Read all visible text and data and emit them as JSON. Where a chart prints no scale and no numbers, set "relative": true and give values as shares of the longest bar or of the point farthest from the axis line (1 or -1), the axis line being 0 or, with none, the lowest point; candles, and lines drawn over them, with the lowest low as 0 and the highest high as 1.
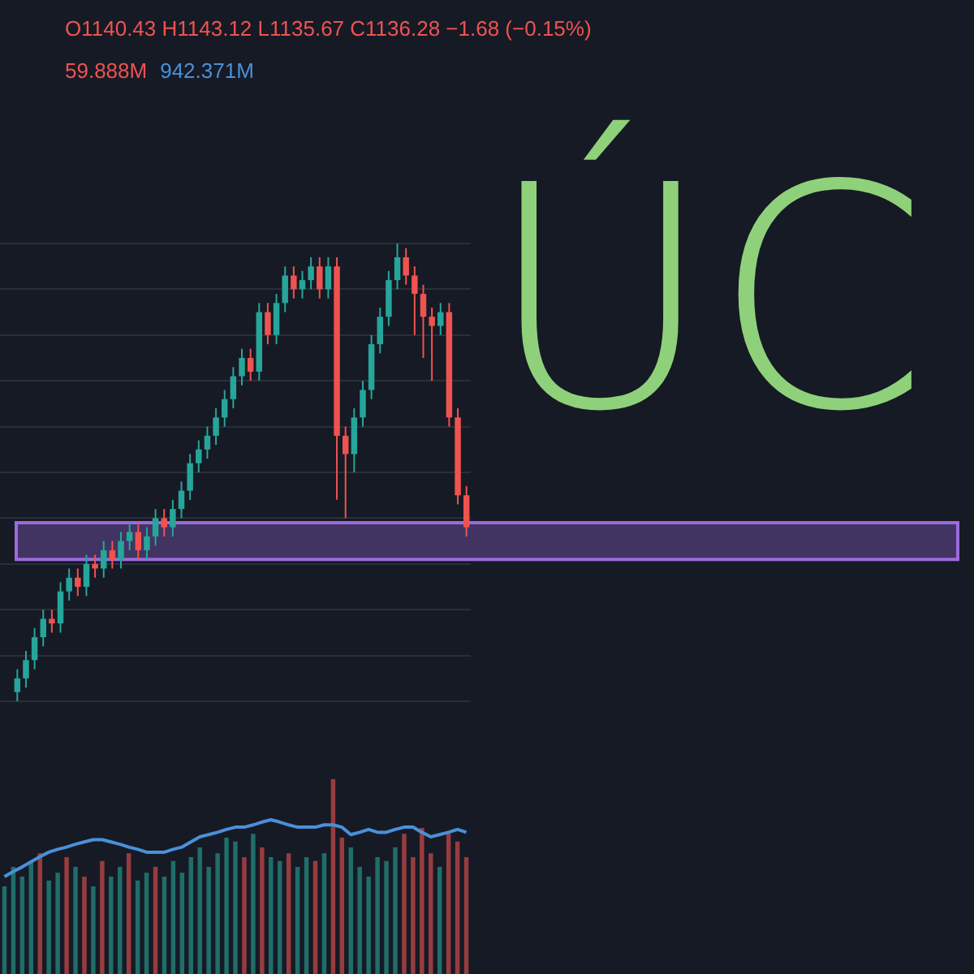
{
  "chart_data": [
    {
      "type": "candlestick",
      "relative": true,
      "grid": true,
      "annotations": [
        "O1140.43 H1143.12 L1135.67 C1136.28 −1.68 (−0.15%)",
        "ÚC"
      ],
      "categories": [
        null,
        null,
        null,
        null,
        null,
        null,
        null,
        null,
        null,
        null,
        null,
        null,
        null,
        null,
        null,
        null,
        null,
        null,
        null,
        null,
        null,
        null,
        null,
        null,
        null,
        null,
        null,
        null,
        null,
        null,
        null,
        null,
        null,
        null,
        null,
        null,
        null,
        null,
        null,
        null,
        null,
        null,
        null,
        null,
        null,
        null,
        null,
        null,
        null,
        null,
        null,
        null,
        null
      ],
      "ohlc": [
        [
          0.02,
          0.07,
          0,
          0.05
        ],
        [
          0.05,
          0.11,
          0.03,
          0.09
        ],
        [
          0.09,
          0.16,
          0.07,
          0.14
        ],
        [
          0.14,
          0.2,
          0.12,
          0.18
        ],
        [
          0.18,
          0.2,
          0.15,
          0.17
        ],
        [
          0.17,
          0.26,
          0.15,
          0.24
        ],
        [
          0.24,
          0.29,
          0.22,
          0.27
        ],
        [
          0.27,
          0.29,
          0.23,
          0.25
        ],
        [
          0.25,
          0.32,
          0.23,
          0.3
        ],
        [
          0.3,
          0.32,
          0.27,
          0.29
        ],
        [
          0.29,
          0.35,
          0.27,
          0.33
        ],
        [
          0.33,
          0.35,
          0.29,
          0.31
        ],
        [
          0.31,
          0.37,
          0.29,
          0.35
        ],
        [
          0.35,
          0.39,
          0.33,
          0.37
        ],
        [
          0.37,
          0.39,
          0.31,
          0.33
        ],
        [
          0.33,
          0.38,
          0.31,
          0.36
        ],
        [
          0.36,
          0.42,
          0.34,
          0.4
        ],
        [
          0.4,
          0.42,
          0.36,
          0.38
        ],
        [
          0.38,
          0.44,
          0.36,
          0.42
        ],
        [
          0.42,
          0.48,
          0.4,
          0.46
        ],
        [
          0.46,
          0.54,
          0.44,
          0.52
        ],
        [
          0.52,
          0.57,
          0.5,
          0.55
        ],
        [
          0.55,
          0.6,
          0.53,
          0.58
        ],
        [
          0.58,
          0.64,
          0.56,
          0.62
        ],
        [
          0.62,
          0.68,
          0.6,
          0.66
        ],
        [
          0.66,
          0.73,
          0.64,
          0.71
        ],
        [
          0.71,
          0.77,
          0.69,
          0.75
        ],
        [
          0.75,
          0.77,
          0.7,
          0.72
        ],
        [
          0.72,
          0.87,
          0.7,
          0.85
        ],
        [
          0.85,
          0.87,
          0.78,
          0.8
        ],
        [
          0.8,
          0.89,
          0.78,
          0.87
        ],
        [
          0.87,
          0.95,
          0.85,
          0.93
        ],
        [
          0.93,
          0.95,
          0.88,
          0.9
        ],
        [
          0.9,
          0.94,
          0.88,
          0.92
        ],
        [
          0.92,
          0.97,
          0.9,
          0.95
        ],
        [
          0.95,
          0.97,
          0.88,
          0.9
        ],
        [
          0.9,
          0.97,
          0.88,
          0.95
        ],
        [
          0.95,
          0.97,
          0.44,
          0.58
        ],
        [
          0.58,
          0.6,
          0.4,
          0.54
        ],
        [
          0.54,
          0.64,
          0.5,
          0.62
        ],
        [
          0.62,
          0.7,
          0.6,
          0.68
        ],
        [
          0.68,
          0.8,
          0.66,
          0.78
        ],
        [
          0.78,
          0.86,
          0.76,
          0.84
        ],
        [
          0.84,
          0.94,
          0.82,
          0.92
        ],
        [
          0.92,
          1,
          0.9,
          0.97
        ],
        [
          0.97,
          0.99,
          0.91,
          0.93
        ],
        [
          0.93,
          0.95,
          0.8,
          0.89
        ],
        [
          0.89,
          0.91,
          0.75,
          0.84
        ],
        [
          0.84,
          0.86,
          0.7,
          0.82
        ],
        [
          0.82,
          0.87,
          0.8,
          0.85
        ],
        [
          0.85,
          0.87,
          0.6,
          0.62
        ],
        [
          0.62,
          0.64,
          0.43,
          0.45
        ],
        [
          0.45,
          0.47,
          0.36,
          0.38
        ]
      ],
      "bands": [
        {
          "axis": "y",
          "from": 0.31,
          "to": 0.39,
          "color": "#9c6ade"
        }
      ]
    },
    {
      "type": "bar",
      "relative": true,
      "annotations": [
        "59.888M",
        "942.371M"
      ],
      "categories": [
        null,
        null,
        null,
        null,
        null,
        null,
        null,
        null,
        null,
        null,
        null,
        null,
        null,
        null,
        null,
        null,
        null,
        null,
        null,
        null,
        null,
        null,
        null,
        null,
        null,
        null,
        null,
        null,
        null,
        null,
        null,
        null,
        null,
        null,
        null,
        null,
        null,
        null,
        null,
        null,
        null,
        null,
        null,
        null,
        null,
        null,
        null,
        null,
        null,
        null,
        null,
        null,
        null
      ],
      "series": [
        {
          "values": [
            0.45,
            0.55,
            0.5,
            0.58,
            0.62,
            0.48,
            0.52,
            0.6,
            0.55,
            0.5,
            0.45,
            0.58,
            0.5,
            0.55,
            0.62,
            0.48,
            0.52,
            0.55,
            0.5,
            0.58,
            0.52,
            0.6,
            0.65,
            0.55,
            0.62,
            0.7,
            0.68,
            0.6,
            0.72,
            0.65,
            0.6,
            0.58,
            0.62,
            0.55,
            0.6,
            0.58,
            0.62,
            1,
            0.7,
            0.65,
            0.55,
            0.5,
            0.6,
            0.58,
            0.65,
            0.72,
            0.6,
            0.75,
            0.62,
            0.55,
            0.72,
            0.68,
            0.6
          ],
          "colors": [
            "#26a69a",
            "#26a69a",
            "#26a69a",
            "#26a69a",
            "#ef5350",
            "#26a69a",
            "#26a69a",
            "#ef5350",
            "#26a69a",
            "#ef5350",
            "#26a69a",
            "#ef5350",
            "#26a69a",
            "#26a69a",
            "#ef5350",
            "#26a69a",
            "#26a69a",
            "#ef5350",
            "#26a69a",
            "#26a69a",
            "#26a69a",
            "#26a69a",
            "#26a69a",
            "#26a69a",
            "#26a69a",
            "#26a69a",
            "#26a69a",
            "#ef5350",
            "#26a69a",
            "#ef5350",
            "#26a69a",
            "#26a69a",
            "#ef5350",
            "#26a69a",
            "#26a69a",
            "#ef5350",
            "#26a69a",
            "#ef5350",
            "#ef5350",
            "#26a69a",
            "#26a69a",
            "#26a69a",
            "#26a69a",
            "#26a69a",
            "#26a69a",
            "#ef5350",
            "#ef5350",
            "#ef5350",
            "#ef5350",
            "#26a69a",
            "#ef5350",
            "#ef5350",
            "#ef5350"
          ]
        }
      ]
    },
    {
      "type": "line",
      "relative": true,
      "categories": [
        null,
        null,
        null,
        null,
        null,
        null,
        null,
        null,
        null,
        null,
        null,
        null,
        null,
        null,
        null,
        null,
        null,
        null,
        null,
        null,
        null,
        null,
        null,
        null,
        null,
        null,
        null,
        null,
        null,
        null,
        null,
        null,
        null,
        null,
        null,
        null,
        null,
        null,
        null,
        null,
        null,
        null,
        null,
        null,
        null,
        null,
        null,
        null,
        null,
        null,
        null,
        null,
        null
      ],
      "series": [
        {
          "color": "#4a90d9",
          "values": [
            0,
            0.09,
            0.17,
            0.26,
            0.35,
            0.43,
            0.48,
            0.52,
            0.57,
            0.61,
            0.65,
            0.65,
            0.61,
            0.57,
            0.52,
            0.48,
            0.43,
            0.43,
            0.43,
            0.48,
            0.52,
            0.61,
            0.7,
            0.74,
            0.78,
            0.83,
            0.87,
            0.87,
            0.91,
            0.96,
            1,
            0.96,
            0.91,
            0.87,
            0.87,
            0.87,
            0.91,
            0.91,
            0.87,
            0.74,
            0.78,
            0.83,
            0.78,
            0.78,
            0.83,
            0.87,
            0.87,
            0.78,
            0.7,
            0.74,
            0.78,
            0.83,
            0.78
          ]
        }
      ]
    }
  ]
}
